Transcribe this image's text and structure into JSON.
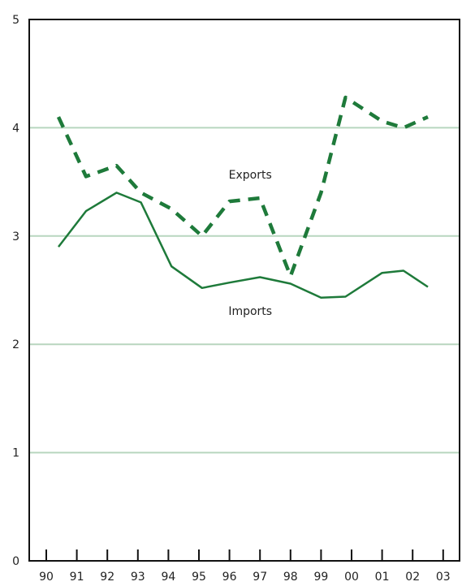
{
  "chart_data": {
    "type": "line",
    "title": "",
    "xlabel": "",
    "ylabel": "",
    "ylim": [
      0,
      5
    ],
    "y_ticks": [
      "0",
      "1",
      "2",
      "3",
      "4",
      "5"
    ],
    "x_ticks": [
      "90",
      "91",
      "92",
      "93",
      "94",
      "95",
      "96",
      "97",
      "98",
      "99",
      "00",
      "01",
      "02",
      "03"
    ],
    "grid": "horizontal",
    "colors": {
      "line": "#1e7a3a",
      "grid": "#b8d6bf",
      "axis": "#111111"
    },
    "series": [
      {
        "name": "Exports",
        "style": "dashed",
        "points": [
          {
            "x": 90.4,
            "y": 4.1
          },
          {
            "x": 91.3,
            "y": 3.55
          },
          {
            "x": 92.3,
            "y": 3.65
          },
          {
            "x": 93.1,
            "y": 3.4
          },
          {
            "x": 94.1,
            "y": 3.25
          },
          {
            "x": 95.1,
            "y": 3.0
          },
          {
            "x": 96.0,
            "y": 3.32
          },
          {
            "x": 97.0,
            "y": 3.35
          },
          {
            "x": 98.0,
            "y": 2.63
          },
          {
            "x": 99.0,
            "y": 3.4
          },
          {
            "x": 99.8,
            "y": 4.28
          },
          {
            "x": 101.0,
            "y": 4.06
          },
          {
            "x": 101.7,
            "y": 4.0
          },
          {
            "x": 102.5,
            "y": 4.1
          }
        ]
      },
      {
        "name": "Imports",
        "style": "solid",
        "points": [
          {
            "x": 90.4,
            "y": 2.9
          },
          {
            "x": 91.3,
            "y": 3.23
          },
          {
            "x": 92.3,
            "y": 3.4
          },
          {
            "x": 93.1,
            "y": 3.31
          },
          {
            "x": 94.1,
            "y": 2.72
          },
          {
            "x": 95.1,
            "y": 2.52
          },
          {
            "x": 96.0,
            "y": 2.57
          },
          {
            "x": 97.0,
            "y": 2.62
          },
          {
            "x": 98.0,
            "y": 2.56
          },
          {
            "x": 99.0,
            "y": 2.43
          },
          {
            "x": 99.8,
            "y": 2.44
          },
          {
            "x": 101.0,
            "y": 2.66
          },
          {
            "x": 101.7,
            "y": 2.68
          },
          {
            "x": 102.5,
            "y": 2.53
          }
        ]
      }
    ],
    "annotations": [
      {
        "text": "Exports",
        "x": 97.0,
        "y": 3.57
      },
      {
        "text": "Imports",
        "x": 97.0,
        "y": 2.31
      }
    ]
  }
}
